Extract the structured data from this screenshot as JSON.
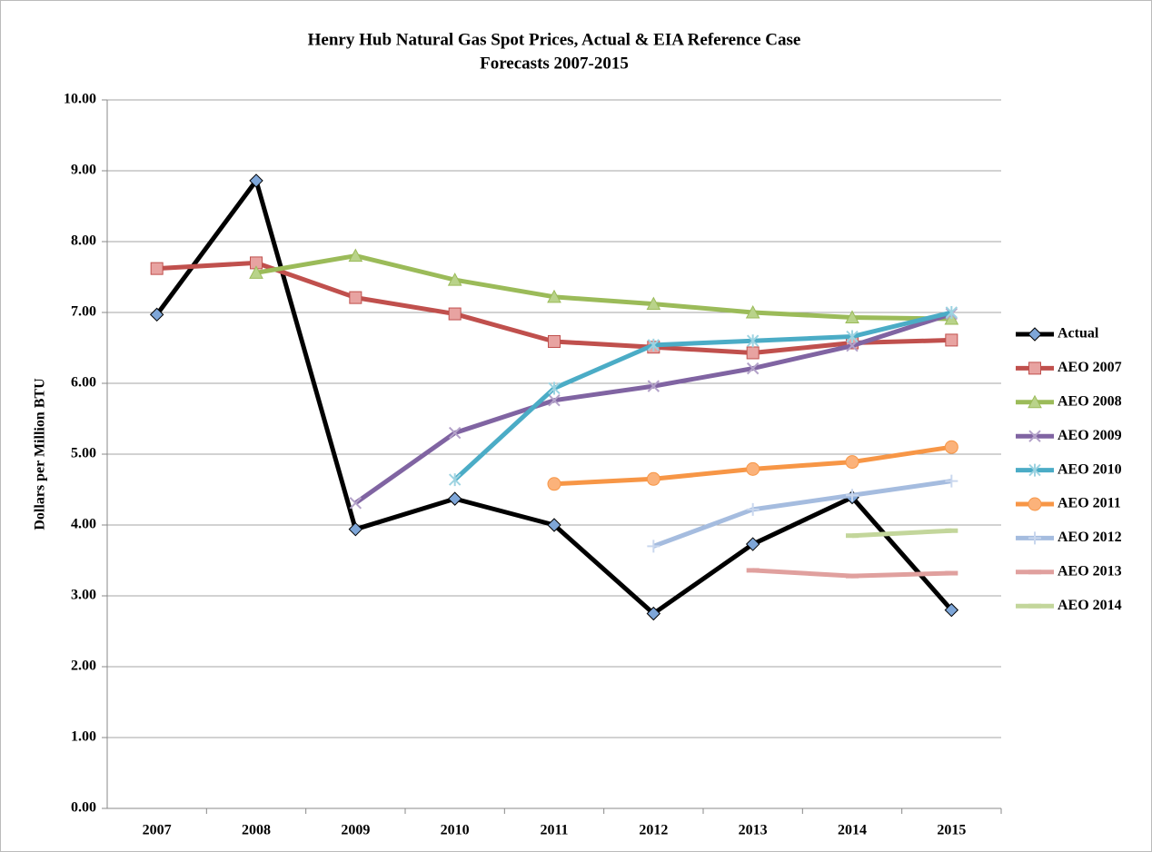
{
  "chart_data": {
    "type": "line",
    "title": "Henry Hub Natural Gas Spot Prices, Actual & EIA Reference Case",
    "subtitle": "Forecasts 2007-2015",
    "ylabel": "Dollars per Million BTU",
    "categories": [
      "2007",
      "2008",
      "2009",
      "2010",
      "2011",
      "2012",
      "2013",
      "2014",
      "2015"
    ],
    "ylim": [
      0,
      10
    ],
    "yticks": [
      {
        "value": 0,
        "label": "0.00"
      },
      {
        "value": 1,
        "label": "1.00"
      },
      {
        "value": 2,
        "label": "2.00"
      },
      {
        "value": 3,
        "label": "3.00"
      },
      {
        "value": 4,
        "label": "4.00"
      },
      {
        "value": 5,
        "label": "5.00"
      },
      {
        "value": 6,
        "label": "6.00"
      },
      {
        "value": 7,
        "label": "7.00"
      },
      {
        "value": 8,
        "label": "8.00"
      },
      {
        "value": 9,
        "label": "9.00"
      },
      {
        "value": 10,
        "label": "10.00"
      }
    ],
    "grid": true,
    "legend": "right",
    "series": [
      {
        "name": "Actual",
        "color": "#000000",
        "marker": "diamond",
        "marker_color": "#7ea6d8",
        "values": [
          6.97,
          8.86,
          3.94,
          4.37,
          4.0,
          2.75,
          3.73,
          4.39,
          2.8
        ]
      },
      {
        "name": "AEO 2007",
        "color": "#c0504d",
        "marker": "square",
        "marker_color": "#e8a3a1",
        "values": [
          7.62,
          7.7,
          7.21,
          6.98,
          6.59,
          6.51,
          6.43,
          6.57,
          6.61
        ]
      },
      {
        "name": "AEO 2008",
        "color": "#9bbb59",
        "marker": "triangle",
        "marker_color": "#b9d38a",
        "values": [
          null,
          7.56,
          7.8,
          7.46,
          7.22,
          7.12,
          7.0,
          6.93,
          6.91
        ]
      },
      {
        "name": "AEO 2009",
        "color": "#8064a2",
        "marker": "x",
        "marker_color": "#b3a2c9",
        "values": [
          null,
          null,
          4.31,
          5.3,
          5.76,
          5.96,
          6.21,
          6.53,
          6.98
        ]
      },
      {
        "name": "AEO 2010",
        "color": "#4bacc6",
        "marker": "star",
        "marker_color": "#9dd3e1",
        "values": [
          null,
          null,
          null,
          4.64,
          5.93,
          6.54,
          6.6,
          6.66,
          7.0
        ]
      },
      {
        "name": "AEO 2011",
        "color": "#f79646",
        "marker": "circle",
        "marker_color": "#fbb27a",
        "values": [
          null,
          null,
          null,
          null,
          4.58,
          4.65,
          4.79,
          4.89,
          5.1
        ]
      },
      {
        "name": "AEO 2012",
        "color": "#a5bcdf",
        "marker": "plus",
        "marker_color": "#c9d7ee",
        "values": [
          null,
          null,
          null,
          null,
          null,
          3.7,
          4.22,
          4.42,
          4.62
        ]
      },
      {
        "name": "AEO 2013",
        "color": "#e0a09e",
        "marker": "dash",
        "marker_color": "#e0a09e",
        "values": [
          null,
          null,
          null,
          null,
          null,
          null,
          3.36,
          3.28,
          3.32
        ]
      },
      {
        "name": "AEO 2014",
        "color": "#c3d69b",
        "marker": "dash",
        "marker_color": "#c3d69b",
        "values": [
          null,
          null,
          null,
          null,
          null,
          null,
          null,
          3.85,
          3.92
        ]
      }
    ]
  }
}
